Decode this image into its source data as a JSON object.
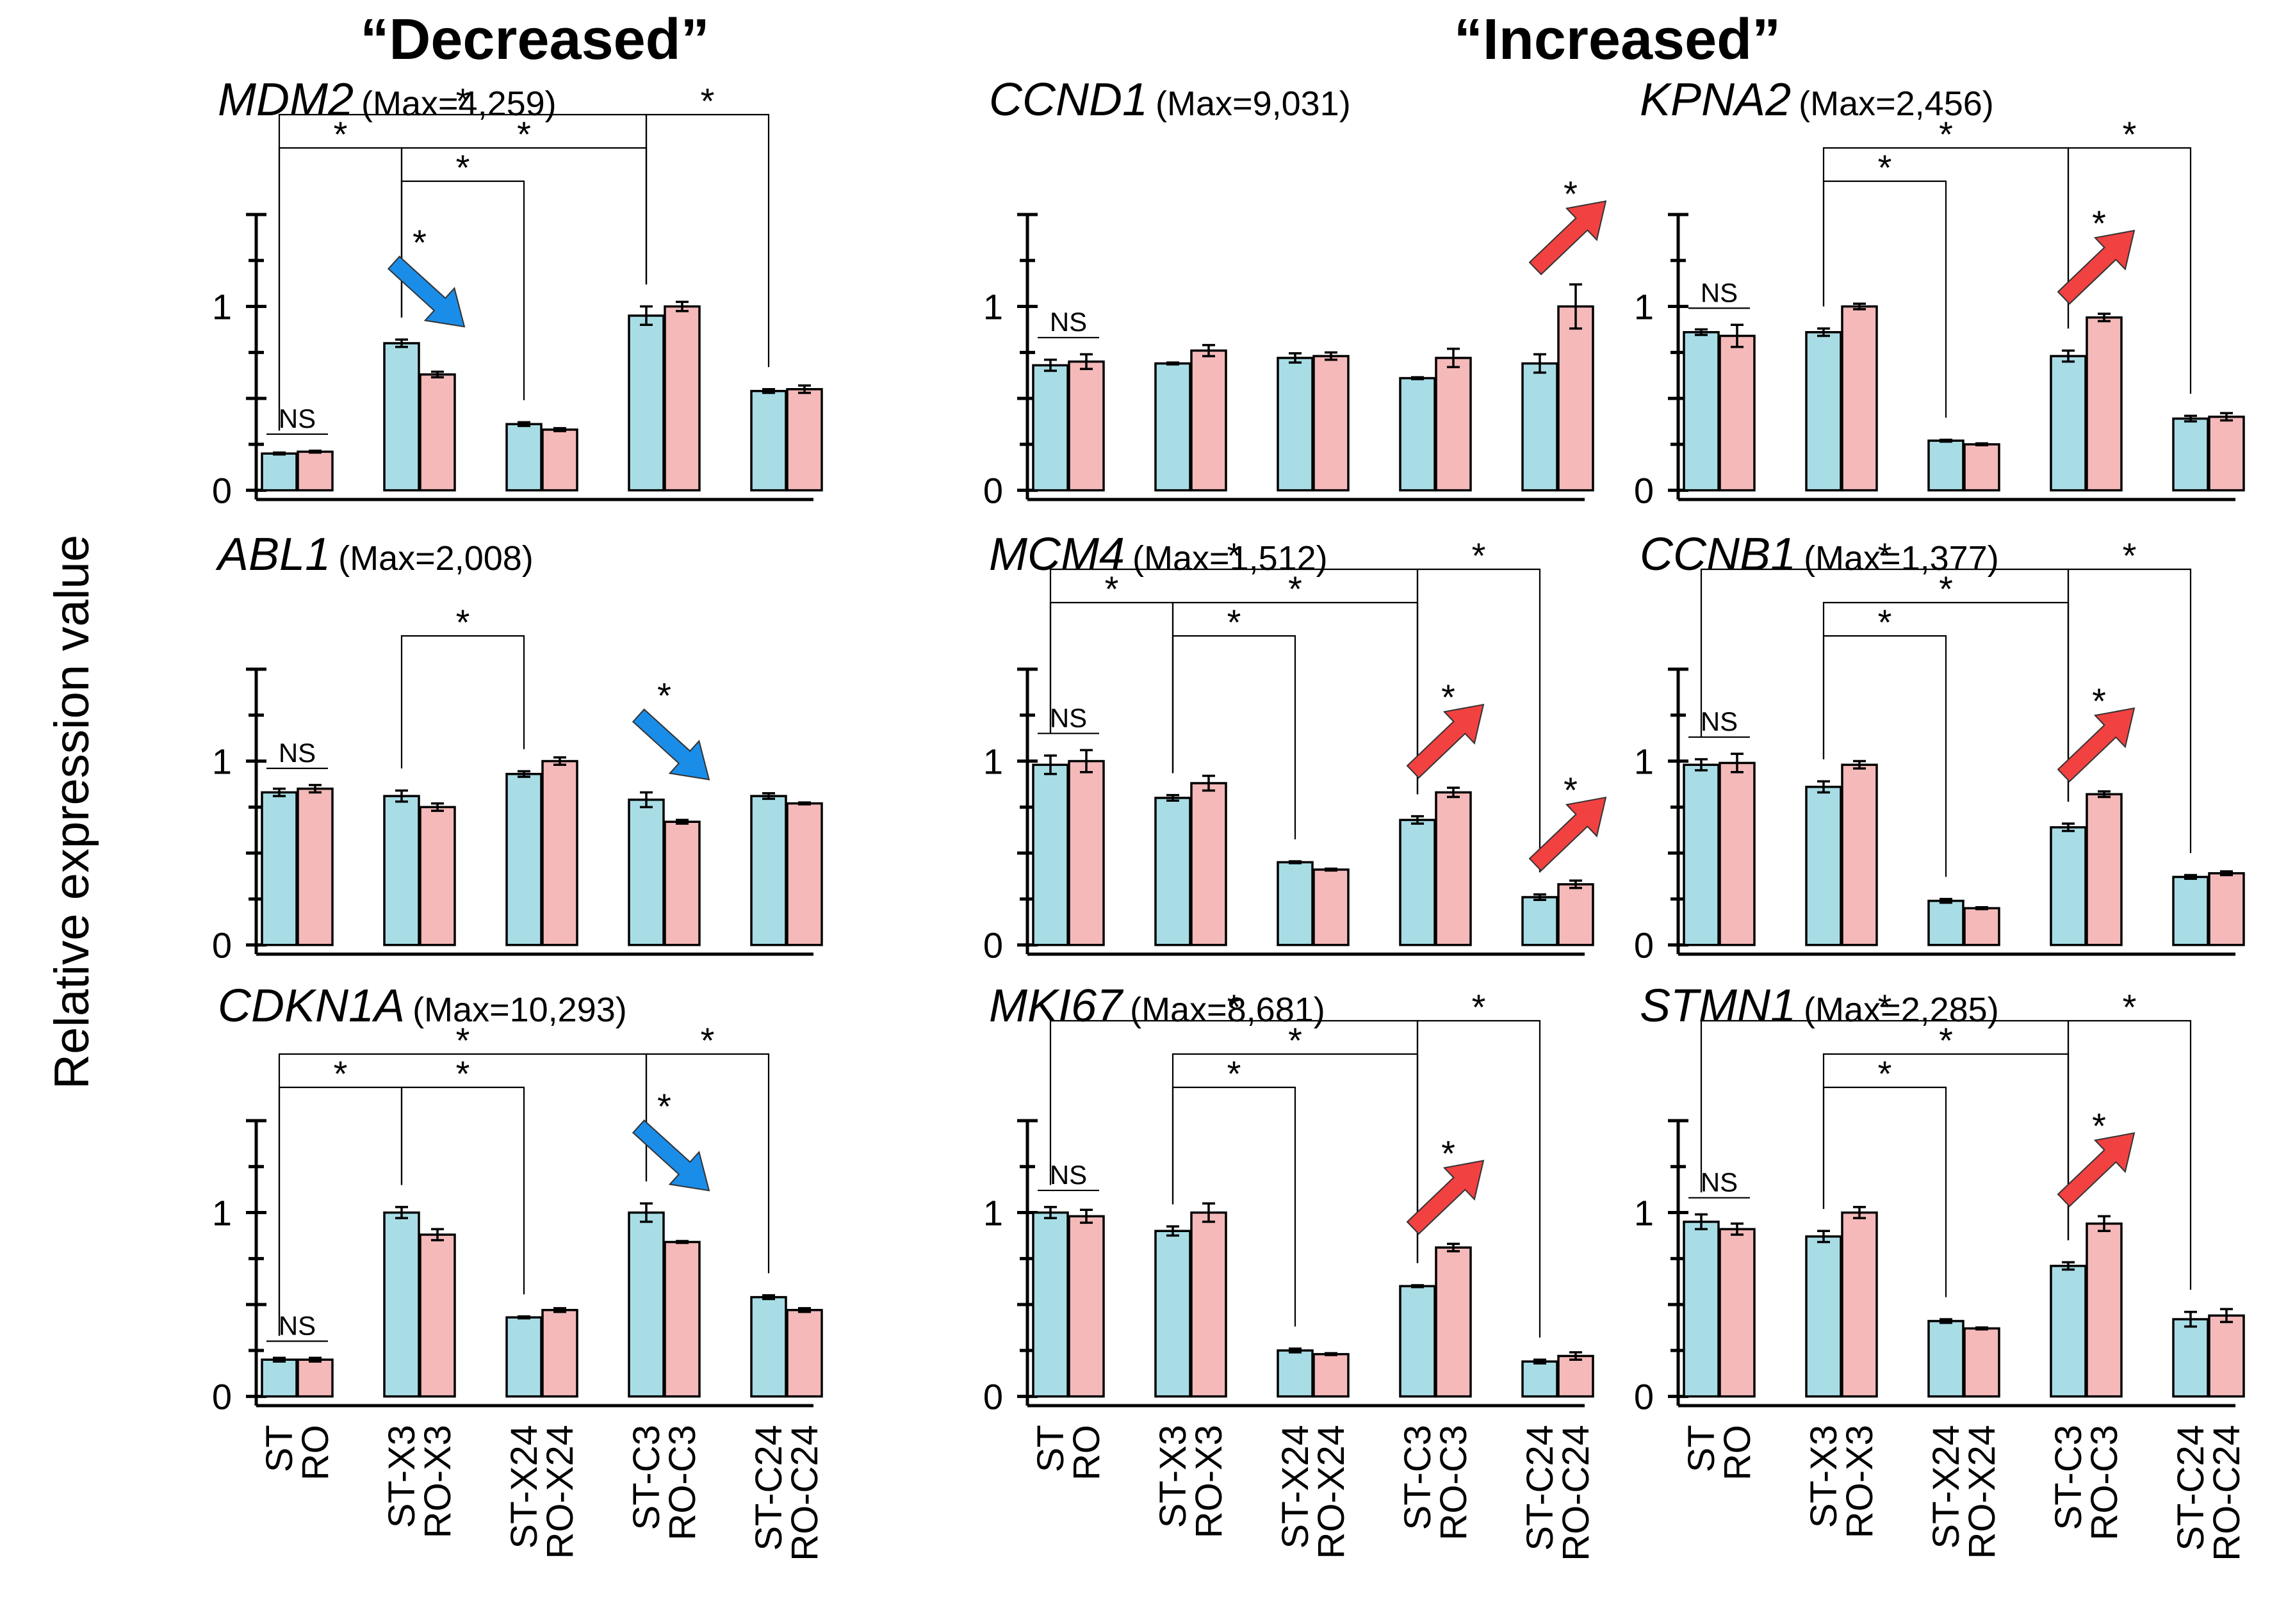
{
  "headers": {
    "decreased": "“Decreased”",
    "increased": "“Increased”",
    "decreased_color": "#1a7de8",
    "increased_color": "#f24b4b"
  },
  "y_axis_label": "Relative expression value",
  "colors": {
    "st_bar": "#a8dde6",
    "ro_bar": "#f5b9b9",
    "down_arrow": "#1a8de9",
    "up_arrow": "#f24141"
  },
  "categories": [
    "ST",
    "RO",
    "ST-X3",
    "RO-X3",
    "ST-X24",
    "RO-X24",
    "ST-C3",
    "RO-C3",
    "ST-C24",
    "RO-C24"
  ],
  "y_ticks": [
    "0",
    "1"
  ],
  "chart_data": [
    {
      "type": "bar",
      "gene": "MDM2",
      "max_label": "(Max=4,259)",
      "ylim": [
        0,
        1.5
      ],
      "categories": [
        "ST",
        "RO",
        "ST-X3",
        "RO-X3",
        "ST-X24",
        "RO-X24",
        "ST-C3",
        "RO-C3",
        "ST-C24",
        "RO-C24"
      ],
      "values": [
        0.2,
        0.21,
        0.8,
        0.63,
        0.36,
        0.33,
        0.95,
        1.0,
        0.54,
        0.55
      ],
      "errors": [
        0.005,
        0.005,
        0.02,
        0.015,
        0.01,
        0.008,
        0.05,
        0.025,
        0.01,
        0.02
      ],
      "ns_label": "NS",
      "brackets": [
        {
          "from": "ST",
          "to": "ST-C3",
          "label": "*"
        },
        {
          "from": "ST",
          "to": "ST-X3",
          "label": "*"
        },
        {
          "from": "ST-X3",
          "to": "ST-X24",
          "label": "*"
        },
        {
          "from": "ST-X3",
          "to": "ST-C3",
          "label": "*"
        },
        {
          "from": "ST-C3",
          "to": "ST-C24",
          "label": "*"
        }
      ],
      "arrow": {
        "direction": "down",
        "group": "X3",
        "label": "*"
      }
    },
    {
      "type": "bar",
      "gene": "CCND1",
      "max_label": "(Max=9,031)",
      "ylim": [
        0,
        1.5
      ],
      "categories": [
        "ST",
        "RO",
        "ST-X3",
        "RO-X3",
        "ST-X24",
        "RO-X24",
        "ST-C3",
        "RO-C3",
        "ST-C24",
        "RO-C24"
      ],
      "values": [
        0.68,
        0.7,
        0.69,
        0.76,
        0.72,
        0.73,
        0.61,
        0.72,
        0.69,
        1.0
      ],
      "errors": [
        0.03,
        0.04,
        0.005,
        0.03,
        0.025,
        0.02,
        0.005,
        0.05,
        0.05,
        0.12
      ],
      "ns_label": "NS",
      "brackets": [],
      "arrow": {
        "direction": "up",
        "group": "C24",
        "label": "*"
      }
    },
    {
      "type": "bar",
      "gene": "KPNA2",
      "max_label": "(Max=2,456)",
      "ylim": [
        0,
        1.5
      ],
      "categories": [
        "ST",
        "RO",
        "ST-X3",
        "RO-X3",
        "ST-X24",
        "RO-X24",
        "ST-C3",
        "RO-C3",
        "ST-C24",
        "RO-C24"
      ],
      "values": [
        0.86,
        0.84,
        0.86,
        1.0,
        0.27,
        0.25,
        0.73,
        0.94,
        0.39,
        0.4
      ],
      "errors": [
        0.015,
        0.06,
        0.02,
        0.015,
        0.005,
        0.005,
        0.03,
        0.02,
        0.015,
        0.02
      ],
      "ns_label": "NS",
      "brackets": [
        {
          "from": "ST-X3",
          "to": "ST-X24",
          "label": "*"
        },
        {
          "from": "ST-X3",
          "to": "ST-C3",
          "label": "*"
        },
        {
          "from": "ST-C3",
          "to": "ST-C24",
          "label": "*"
        }
      ],
      "arrow": {
        "direction": "up",
        "group": "C3",
        "label": "*"
      }
    },
    {
      "type": "bar",
      "gene": "ABL1",
      "max_label": "(Max=2,008)",
      "ylim": [
        0,
        1.5
      ],
      "categories": [
        "ST",
        "RO",
        "ST-X3",
        "RO-X3",
        "ST-X24",
        "RO-X24",
        "ST-C3",
        "RO-C3",
        "ST-C24",
        "RO-C24"
      ],
      "values": [
        0.83,
        0.85,
        0.81,
        0.75,
        0.93,
        1.0,
        0.79,
        0.67,
        0.81,
        0.77
      ],
      "errors": [
        0.02,
        0.02,
        0.03,
        0.02,
        0.015,
        0.02,
        0.04,
        0.01,
        0.015,
        0.005
      ],
      "ns_label": "NS",
      "brackets": [
        {
          "from": "ST-X3",
          "to": "ST-X24",
          "label": "*"
        }
      ],
      "arrow": {
        "direction": "down",
        "group": "C3",
        "label": "*"
      }
    },
    {
      "type": "bar",
      "gene": "MCM4",
      "max_label": "(Max=1,512)",
      "ylim": [
        0,
        1.5
      ],
      "categories": [
        "ST",
        "RO",
        "ST-X3",
        "RO-X3",
        "ST-X24",
        "RO-X24",
        "ST-C3",
        "RO-C3",
        "ST-C24",
        "RO-C24"
      ],
      "values": [
        0.98,
        1.0,
        0.8,
        0.88,
        0.45,
        0.41,
        0.68,
        0.83,
        0.26,
        0.33
      ],
      "errors": [
        0.05,
        0.06,
        0.015,
        0.04,
        0.005,
        0.005,
        0.02,
        0.025,
        0.015,
        0.02
      ],
      "ns_label": "NS",
      "brackets": [
        {
          "from": "ST",
          "to": "ST-C3",
          "label": "*"
        },
        {
          "from": "ST",
          "to": "ST-X3",
          "label": "*"
        },
        {
          "from": "ST-X3",
          "to": "ST-X24",
          "label": "*"
        },
        {
          "from": "ST-X3",
          "to": "ST-C3",
          "label": "*"
        },
        {
          "from": "ST-C3",
          "to": "ST-C24",
          "label": "*"
        }
      ],
      "arrow": {
        "direction": "up",
        "group": "C3",
        "label": "*"
      },
      "arrow2": {
        "direction": "up",
        "group": "C24",
        "label": "*"
      }
    },
    {
      "type": "bar",
      "gene": "CCNB1",
      "max_label": "(Max=1,377)",
      "ylim": [
        0,
        1.5
      ],
      "categories": [
        "ST",
        "RO",
        "ST-X3",
        "RO-X3",
        "ST-X24",
        "RO-X24",
        "ST-C3",
        "RO-C3",
        "ST-C24",
        "RO-C24"
      ],
      "values": [
        0.98,
        0.99,
        0.86,
        0.98,
        0.24,
        0.2,
        0.64,
        0.82,
        0.37,
        0.39
      ],
      "errors": [
        0.03,
        0.05,
        0.03,
        0.02,
        0.01,
        0.005,
        0.02,
        0.015,
        0.01,
        0.01
      ],
      "ns_label": "NS",
      "brackets": [
        {
          "from": "ST",
          "to": "ST-C3",
          "label": "*"
        },
        {
          "from": "ST-X3",
          "to": "ST-X24",
          "label": "*"
        },
        {
          "from": "ST-X3",
          "to": "ST-C3",
          "label": "*"
        },
        {
          "from": "ST-C3",
          "to": "ST-C24",
          "label": "*"
        }
      ],
      "arrow": {
        "direction": "up",
        "group": "C3",
        "label": "*"
      }
    },
    {
      "type": "bar",
      "gene": "CDKN1A",
      "max_label": "(Max=10,293)",
      "ylim": [
        0,
        1.5
      ],
      "categories": [
        "ST",
        "RO",
        "ST-X3",
        "RO-X3",
        "ST-X24",
        "RO-X24",
        "ST-C3",
        "RO-C3",
        "ST-C24",
        "RO-C24"
      ],
      "values": [
        0.2,
        0.2,
        1.0,
        0.88,
        0.43,
        0.47,
        1.0,
        0.84,
        0.54,
        0.47
      ],
      "errors": [
        0.01,
        0.01,
        0.03,
        0.03,
        0.005,
        0.01,
        0.05,
        0.005,
        0.01,
        0.01
      ],
      "ns_label": "NS",
      "brackets": [
        {
          "from": "ST",
          "to": "ST-C3",
          "label": "*"
        },
        {
          "from": "ST",
          "to": "ST-X3",
          "label": "*"
        },
        {
          "from": "ST-X3",
          "to": "ST-X24",
          "label": "*"
        },
        {
          "from": "ST-C3",
          "to": "ST-C24",
          "label": "*"
        }
      ],
      "arrow": {
        "direction": "down",
        "group": "C3",
        "label": "*"
      }
    },
    {
      "type": "bar",
      "gene": "MKI67",
      "max_label": "(Max=8,681)",
      "ylim": [
        0,
        1.5
      ],
      "categories": [
        "ST",
        "RO",
        "ST-X3",
        "RO-X3",
        "ST-X24",
        "RO-X24",
        "ST-C3",
        "RO-C3",
        "ST-C24",
        "RO-C24"
      ],
      "values": [
        1.0,
        0.98,
        0.9,
        1.0,
        0.25,
        0.23,
        0.6,
        0.81,
        0.19,
        0.22
      ],
      "errors": [
        0.03,
        0.035,
        0.025,
        0.05,
        0.01,
        0.005,
        0.005,
        0.02,
        0.01,
        0.02
      ],
      "ns_label": "NS",
      "brackets": [
        {
          "from": "ST",
          "to": "ST-C3",
          "label": "*"
        },
        {
          "from": "ST-X3",
          "to": "ST-X24",
          "label": "*"
        },
        {
          "from": "ST-X3",
          "to": "ST-C3",
          "label": "*"
        },
        {
          "from": "ST-C3",
          "to": "ST-C24",
          "label": "*"
        }
      ],
      "arrow": {
        "direction": "up",
        "group": "C3",
        "label": "*"
      }
    },
    {
      "type": "bar",
      "gene": "STMN1",
      "max_label": "(Max=2,285)",
      "ylim": [
        0,
        1.5
      ],
      "categories": [
        "ST",
        "RO",
        "ST-X3",
        "RO-X3",
        "ST-X24",
        "RO-X24",
        "ST-C3",
        "RO-C3",
        "ST-C24",
        "RO-C24"
      ],
      "values": [
        0.95,
        0.91,
        0.87,
        1.0,
        0.41,
        0.37,
        0.71,
        0.94,
        0.42,
        0.44
      ],
      "errors": [
        0.04,
        0.03,
        0.03,
        0.03,
        0.01,
        0.005,
        0.02,
        0.04,
        0.04,
        0.035
      ],
      "ns_label": "NS",
      "brackets": [
        {
          "from": "ST",
          "to": "ST-C3",
          "label": "*"
        },
        {
          "from": "ST-X3",
          "to": "ST-X24",
          "label": "*"
        },
        {
          "from": "ST-X3",
          "to": "ST-C3",
          "label": "*"
        },
        {
          "from": "ST-C3",
          "to": "ST-C24",
          "label": "*"
        }
      ],
      "arrow": {
        "direction": "up",
        "group": "C3",
        "label": "*"
      }
    }
  ]
}
